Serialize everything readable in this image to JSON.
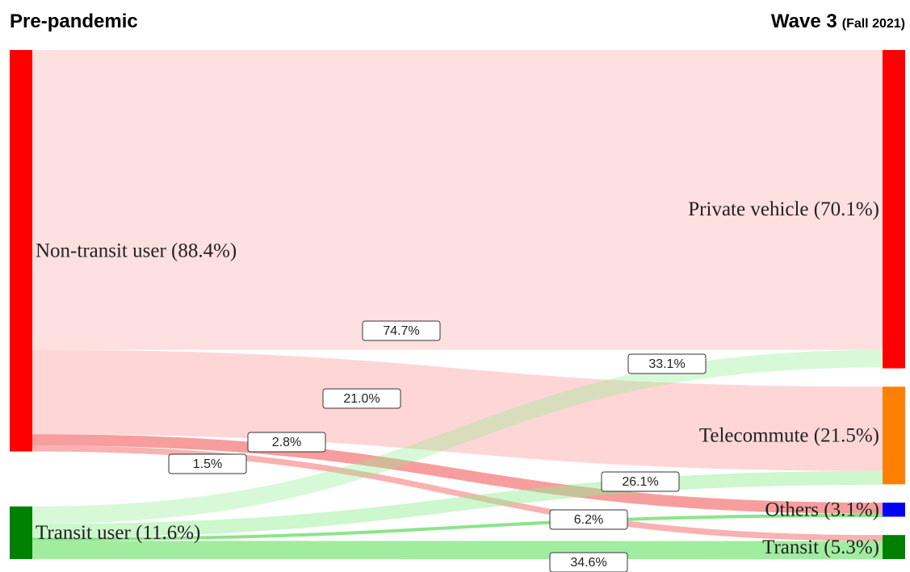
{
  "chart_data": {
    "type": "sankey",
    "title_left": "Pre-pandemic",
    "title_right": "Wave 3",
    "title_right_note": "(Fall 2021)",
    "nodes": [
      {
        "label": "Non-transit user (88.4%)",
        "value": 88.4,
        "column": 0,
        "color": "#ff0000"
      },
      {
        "label": "Transit user (11.6%)",
        "value": 11.6,
        "column": 0,
        "color": "#008000"
      },
      {
        "label": "Private vehicle (70.1%)",
        "value": 70.1,
        "column": 1,
        "color": "#ff0000"
      },
      {
        "label": "Telecommute (21.5%)",
        "value": 21.5,
        "column": 1,
        "color": "#ff8000"
      },
      {
        "label": "Others (3.1%)",
        "value": 3.1,
        "column": 1,
        "color": "#0000ff"
      },
      {
        "label": "Transit (5.3%)",
        "value": 5.3,
        "column": 1,
        "color": "#008000"
      }
    ],
    "links": [
      {
        "source": 0,
        "target": 2,
        "value": 74.7,
        "value_label": "74.7%",
        "color": "rgba(255,0,0,0.12)"
      },
      {
        "source": 0,
        "target": 3,
        "value": 21.0,
        "value_label": "21.0%",
        "color": "rgba(255,0,0,0.16)"
      },
      {
        "source": 0,
        "target": 4,
        "value": 2.8,
        "value_label": "2.8%",
        "color": "rgba(240,60,60,0.5)"
      },
      {
        "source": 0,
        "target": 5,
        "value": 1.5,
        "value_label": "1.5%",
        "color": "rgba(240,60,60,0.4)"
      },
      {
        "source": 1,
        "target": 2,
        "value": 33.1,
        "value_label": "33.1%",
        "color": "rgba(144,238,144,0.35)"
      },
      {
        "source": 1,
        "target": 3,
        "value": 26.1,
        "value_label": "26.1%",
        "color": "rgba(144,238,144,0.45)"
      },
      {
        "source": 1,
        "target": 4,
        "value": 6.2,
        "value_label": "6.2%",
        "color": "rgba(100,220,100,0.75)"
      },
      {
        "source": 1,
        "target": 5,
        "value": 34.6,
        "value_label": "34.6%",
        "color": "rgba(120,230,120,0.7)"
      }
    ]
  }
}
